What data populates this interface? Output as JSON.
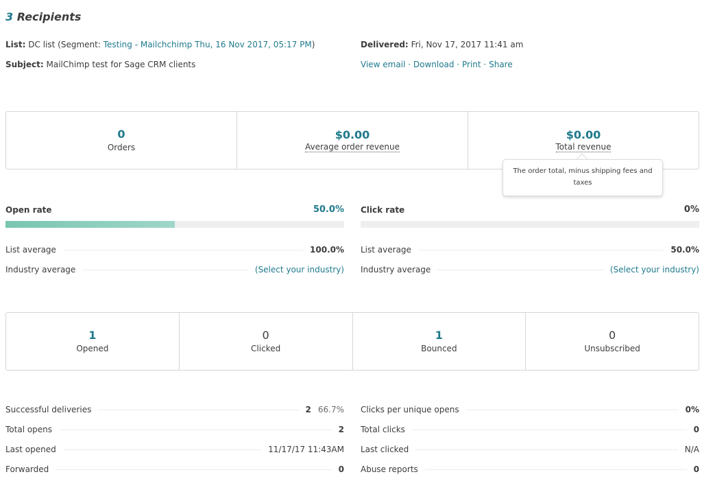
{
  "header": {
    "recipients_count": "3",
    "recipients_label": "Recipients",
    "list_label": "List:",
    "list_value": "DC list (Segment: ",
    "segment_link": "Testing - Mailchchimp Thu, 16 Nov 2017, 05:17 PM",
    "list_close": ")",
    "subject_label": "Subject:",
    "subject_value": "MailChimp test for Sage CRM clients",
    "delivered_label": "Delivered:",
    "delivered_value": "Fri, Nov 17, 2017 11:41 am",
    "actions": {
      "view_email": "View email",
      "download": "Download",
      "print": "Print",
      "share": "Share",
      "separator": "·"
    }
  },
  "revenue": {
    "orders_value": "0",
    "orders_label": "Orders",
    "avg_value": "$0.00",
    "avg_label": "Average order revenue",
    "total_value": "$0.00",
    "total_label": "Total revenue"
  },
  "tooltip": {
    "text": "The order total, minus shipping fees and taxes"
  },
  "open_rate": {
    "label": "Open rate",
    "value": "50.0%",
    "fraction": 0.5,
    "list_avg_label": "List average",
    "list_avg_value": "100.0%",
    "industry_label": "Industry average",
    "industry_link": "(Select your industry)"
  },
  "click_rate": {
    "label": "Click rate",
    "value": "0%",
    "fraction": 0,
    "list_avg_label": "List average",
    "list_avg_value": "50.0%",
    "industry_label": "Industry average",
    "industry_link": "(Select your industry)"
  },
  "activity": {
    "opened_value": "1",
    "opened_label": "Opened",
    "clicked_value": "0",
    "clicked_label": "Clicked",
    "bounced_value": "1",
    "bounced_label": "Bounced",
    "unsub_value": "0",
    "unsub_label": "Unsubscribed"
  },
  "stats_left": [
    {
      "label": "Successful deliveries",
      "value": "2",
      "extra": "66.7%"
    },
    {
      "label": "Total opens",
      "value": "2"
    },
    {
      "label": "Last opened",
      "value": "11/17/17 11:43AM"
    },
    {
      "label": "Forwarded",
      "value": "0"
    }
  ],
  "stats_right": [
    {
      "label": "Clicks per unique opens",
      "value": "0%"
    },
    {
      "label": "Total clicks",
      "value": "0"
    },
    {
      "label": "Last clicked",
      "value": "N/A"
    },
    {
      "label": "Abuse reports",
      "value": "0"
    }
  ],
  "colors": {
    "accent": "#1f7a8c",
    "bar_fill": "#8fd0c0",
    "bar_track": "#efefef"
  }
}
